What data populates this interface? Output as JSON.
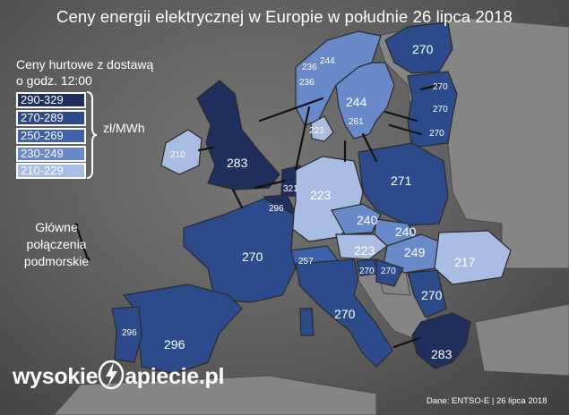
{
  "title": "Ceny energii elektrycznej w Europie w południe 26 lipca 2018",
  "legend": {
    "title_line1": "Ceny hurtowe z dostawą",
    "title_line2": "o godz. 12:00",
    "unit": "zł/MWh",
    "ranges": [
      {
        "label": "290-329",
        "color": "#1f2f5e"
      },
      {
        "label": "270-289",
        "color": "#2d4a8a"
      },
      {
        "label": "250-269",
        "color": "#3e62a8"
      },
      {
        "label": "230-249",
        "color": "#6989c8"
      },
      {
        "label": "210-229",
        "color": "#a9bde3"
      }
    ],
    "connections_line1": "Główne",
    "connections_line2": "połączenia",
    "connections_line3": "podmorskie"
  },
  "prices": {
    "uk": "283",
    "ireland": "210",
    "netherlands": "321",
    "belgium": "296",
    "france": "270",
    "spain": "296",
    "portugal": "296",
    "germany": "223",
    "poland": "271",
    "czechia": "240",
    "slovakia": "240",
    "austria": "223",
    "hungary": "249",
    "romania": "217",
    "italy": "270",
    "switzerland": "257",
    "slovenia": "270",
    "croatia": "270",
    "serbia": "270",
    "greece": "283",
    "denmark_w": "223",
    "denmark_e": "261",
    "sweden_s": "244",
    "norway_1": "236",
    "norway_2": "244",
    "norway_3": "236",
    "finland": "270",
    "estonia": "270",
    "latvia": "270",
    "lithuania": "270"
  },
  "brand": {
    "before": "wysokie",
    "after": "apiecie.pl"
  },
  "credit": "Dane: ENTSO-E   |   26 lipca 2018"
}
